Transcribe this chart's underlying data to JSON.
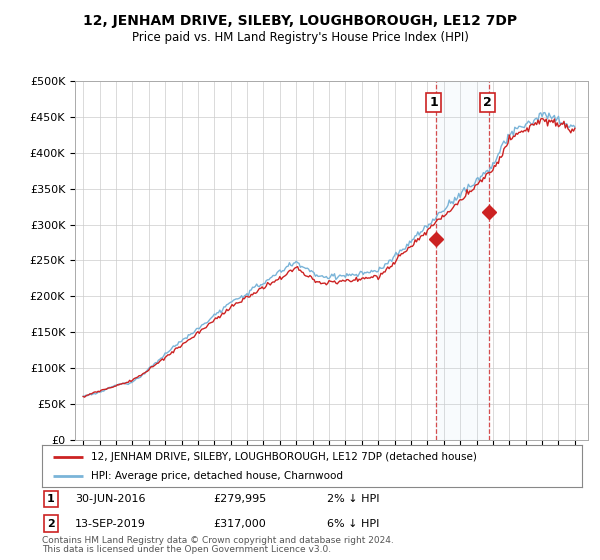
{
  "title": "12, JENHAM DRIVE, SILEBY, LOUGHBOROUGH, LE12 7DP",
  "subtitle": "Price paid vs. HM Land Registry's House Price Index (HPI)",
  "ylabel_ticks": [
    "£0",
    "£50K",
    "£100K",
    "£150K",
    "£200K",
    "£250K",
    "£300K",
    "£350K",
    "£400K",
    "£450K",
    "£500K"
  ],
  "ytick_values": [
    0,
    50000,
    100000,
    150000,
    200000,
    250000,
    300000,
    350000,
    400000,
    450000,
    500000
  ],
  "ylim": [
    0,
    500000
  ],
  "hpi_color": "#7ab4d8",
  "price_color": "#cc2222",
  "annotation1_label": "1",
  "annotation2_label": "2",
  "annotation1_date": "30-JUN-2016",
  "annotation1_price": "£279,995",
  "annotation1_hpi": "2% ↓ HPI",
  "annotation2_date": "13-SEP-2019",
  "annotation2_price": "£317,000",
  "annotation2_hpi": "6% ↓ HPI",
  "legend_line1": "12, JENHAM DRIVE, SILEBY, LOUGHBOROUGH, LE12 7DP (detached house)",
  "legend_line2": "HPI: Average price, detached house, Charnwood",
  "footer1": "Contains HM Land Registry data © Crown copyright and database right 2024.",
  "footer2": "This data is licensed under the Open Government Licence v3.0.",
  "background_color": "#ffffff",
  "plot_bg_color": "#ffffff",
  "grid_color": "#cccccc",
  "sale1_year": 2016.5,
  "sale1_value": 279995,
  "sale2_year": 2019.75,
  "sale2_value": 317000,
  "xstart": 1995,
  "xend": 2025
}
